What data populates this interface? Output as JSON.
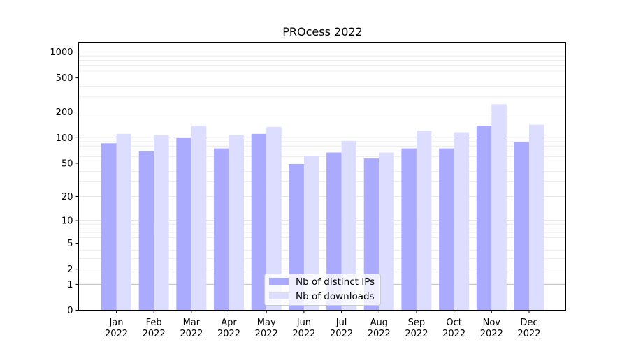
{
  "chart_data": {
    "type": "bar",
    "title": "PROcess 2022",
    "xlabel": "",
    "ylabel": "",
    "yscale": "symlog",
    "ylim": [
      0,
      1300
    ],
    "yticks": [
      0,
      1,
      2,
      5,
      10,
      20,
      50,
      100,
      200,
      500,
      1000
    ],
    "grid": true,
    "legend_position": "lower center",
    "categories": [
      [
        "Jan",
        "2022"
      ],
      [
        "Feb",
        "2022"
      ],
      [
        "Mar",
        "2022"
      ],
      [
        "Apr",
        "2022"
      ],
      [
        "May",
        "2022"
      ],
      [
        "Jun",
        "2022"
      ],
      [
        "Jul",
        "2022"
      ],
      [
        "Aug",
        "2022"
      ],
      [
        "Sep",
        "2022"
      ],
      [
        "Oct",
        "2022"
      ],
      [
        "Nov",
        "2022"
      ],
      [
        "Dec",
        "2022"
      ]
    ],
    "series": [
      {
        "name": "Nb of distinct IPs",
        "color": "#aaaaff",
        "values": [
          86,
          69,
          100,
          75,
          111,
          49,
          67,
          57,
          75,
          75,
          138,
          89
        ]
      },
      {
        "name": "Nb of downloads",
        "color": "#ddddff",
        "values": [
          111,
          107,
          139,
          107,
          134,
          61,
          92,
          67,
          121,
          116,
          247,
          142
        ]
      }
    ]
  }
}
